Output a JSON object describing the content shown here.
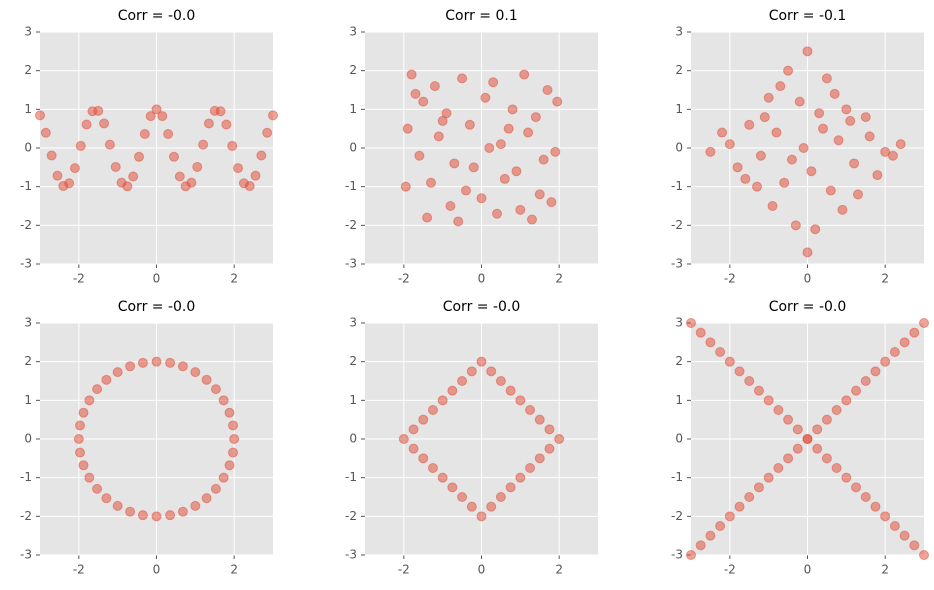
{
  "chart_data": [
    {
      "type": "scatter",
      "title": "Corr = -0.0",
      "color": "#E24A33",
      "grid": true,
      "xlim": [
        -3,
        3
      ],
      "ylim": [
        -3,
        3
      ],
      "xticks": [
        -2,
        0,
        2
      ],
      "yticks": [
        -3,
        -2,
        -1,
        0,
        1,
        2,
        3
      ],
      "x": [
        -3,
        -2.85,
        -2.7,
        -2.55,
        -2.4,
        -2.25,
        -2.1,
        -1.95,
        -1.8,
        -1.65,
        -1.5,
        -1.35,
        -1.2,
        -1.05,
        -0.9,
        -0.75,
        -0.6,
        -0.45,
        -0.3,
        -0.15,
        0,
        0.15,
        0.3,
        0.45,
        0.6,
        0.75,
        0.9,
        1.05,
        1.2,
        1.35,
        1.5,
        1.65,
        1.8,
        1.95,
        2.1,
        2.25,
        2.4,
        2.55,
        2.7,
        2.85,
        3
      ],
      "y": [
        0.844,
        0.394,
        -0.194,
        -0.716,
        -0.984,
        -0.911,
        -0.52,
        0.054,
        0.608,
        0.95,
        0.96,
        0.635,
        0.087,
        -0.49,
        -0.897,
        -0.99,
        -0.737,
        -0.227,
        0.362,
        0.825,
        1,
        0.825,
        0.362,
        -0.227,
        -0.737,
        -0.99,
        -0.897,
        -0.49,
        0.087,
        0.635,
        0.96,
        0.95,
        0.608,
        0.054,
        -0.52,
        -0.911,
        -0.984,
        -0.716,
        -0.194,
        0.394,
        0.844
      ]
    },
    {
      "type": "scatter",
      "title": "Corr = 0.1",
      "color": "#E24A33",
      "grid": true,
      "xlim": [
        -3,
        3
      ],
      "ylim": [
        -3,
        3
      ],
      "xticks": [
        -2,
        0,
        2
      ],
      "yticks": [
        -3,
        -2,
        -1,
        0,
        1,
        2,
        3
      ],
      "x": [
        -1.8,
        -1.2,
        -0.5,
        0.3,
        1.1,
        1.7,
        -1.5,
        -0.9,
        0.1,
        0.8,
        1.4,
        -1.9,
        -1.1,
        -0.3,
        0.5,
        1.2,
        1.9,
        -1.6,
        -0.7,
        0.2,
        0.9,
        1.6,
        -1.3,
        -0.4,
        0.6,
        1.5,
        -1.95,
        -0.8,
        0,
        1,
        1.8,
        -1.4,
        -0.6,
        0.4,
        1.3,
        -1.7,
        -1,
        -0.2,
        0.7,
        1.95
      ],
      "y": [
        1.9,
        1.6,
        1.8,
        1.7,
        1.9,
        1.5,
        1.2,
        0.9,
        1.3,
        1.0,
        0.8,
        0.5,
        0.3,
        0.6,
        0.1,
        0.4,
        -0.1,
        -0.2,
        -0.4,
        0.0,
        -0.6,
        -0.3,
        -0.9,
        -1.1,
        -0.8,
        -1.2,
        -1.0,
        -1.5,
        -1.3,
        -1.6,
        -1.4,
        -1.8,
        -1.9,
        -1.7,
        -1.85,
        1.4,
        0.7,
        -0.5,
        0.5,
        1.2
      ]
    },
    {
      "type": "scatter",
      "title": "Corr = -0.1",
      "color": "#E24A33",
      "grid": true,
      "xlim": [
        -3,
        3
      ],
      "ylim": [
        -3,
        3
      ],
      "xticks": [
        -2,
        0,
        2
      ],
      "yticks": [
        -3,
        -2,
        -1,
        0,
        1,
        2,
        3
      ],
      "x": [
        0,
        0.5,
        -0.5,
        -0.2,
        0.3,
        -1.0,
        1.0,
        -1.5,
        1.5,
        -0.8,
        0.8,
        -2.0,
        2.0,
        -1.2,
        1.2,
        -0.4,
        0.4,
        -2.5,
        2.4,
        -1.8,
        1.8,
        -0.6,
        0.6,
        0,
        -1.3,
        1.3,
        -0.9,
        0.9,
        -0.3,
        0.2,
        -1.6,
        1.6,
        -0.7,
        0.7,
        0.1,
        -0.1,
        -2.2,
        2.2,
        -1.1,
        1.1
      ],
      "y": [
        2.5,
        1.8,
        2.0,
        1.2,
        0.9,
        1.3,
        1.0,
        0.6,
        0.8,
        0.4,
        0.2,
        0.1,
        -0.1,
        -0.2,
        -0.4,
        -0.3,
        0.5,
        -0.1,
        0.1,
        -0.5,
        -0.7,
        -0.9,
        -1.1,
        -2.7,
        -1.0,
        -1.2,
        -1.5,
        -1.6,
        -2.0,
        -2.1,
        -0.8,
        0.3,
        1.6,
        1.4,
        -0.6,
        0.0,
        0.4,
        -0.2,
        0.8,
        0.7
      ]
    },
    {
      "type": "scatter",
      "title": "Corr = -0.0",
      "color": "#E24A33",
      "grid": true,
      "xlim": [
        -3,
        3
      ],
      "ylim": [
        -3,
        3
      ],
      "xticks": [
        -2,
        0,
        2
      ],
      "yticks": [
        -3,
        -2,
        -1,
        0,
        1,
        2,
        3
      ],
      "x": [
        2,
        1.97,
        1.88,
        1.73,
        1.53,
        1.29,
        1,
        0.68,
        0.35,
        0,
        -0.35,
        -0.68,
        -1,
        -1.29,
        -1.53,
        -1.73,
        -1.88,
        -1.97,
        -2,
        -1.97,
        -1.88,
        -1.73,
        -1.53,
        -1.29,
        -1,
        -0.68,
        -0.35,
        0,
        0.35,
        0.68,
        1,
        1.29,
        1.53,
        1.73,
        1.88,
        1.97
      ],
      "y": [
        0,
        0.35,
        0.68,
        1,
        1.29,
        1.53,
        1.73,
        1.88,
        1.97,
        2,
        1.97,
        1.88,
        1.73,
        1.53,
        1.29,
        1,
        0.68,
        0.35,
        0,
        -0.35,
        -0.68,
        -1,
        -1.29,
        -1.53,
        -1.73,
        -1.88,
        -1.97,
        -2,
        -1.97,
        -1.88,
        -1.73,
        -1.53,
        -1.29,
        -1,
        -0.68,
        -0.35
      ]
    },
    {
      "type": "scatter",
      "title": "Corr = -0.0",
      "color": "#E24A33",
      "grid": true,
      "xlim": [
        -3,
        3
      ],
      "ylim": [
        -3,
        3
      ],
      "xticks": [
        -2,
        0,
        2
      ],
      "yticks": [
        -3,
        -2,
        -1,
        0,
        1,
        2,
        3
      ],
      "x": [
        -2,
        -1.75,
        -1.5,
        -1.25,
        -1,
        -0.75,
        -0.5,
        -0.25,
        0,
        0.25,
        0.5,
        0.75,
        1,
        1.25,
        1.5,
        1.75,
        2,
        -1.75,
        -1.5,
        -1.25,
        -1,
        -0.75,
        -0.5,
        -0.25,
        0,
        0.25,
        0.5,
        0.75,
        1,
        1.25,
        1.5,
        1.75
      ],
      "y": [
        0,
        0.25,
        0.5,
        0.75,
        1,
        1.25,
        1.5,
        1.75,
        2,
        1.75,
        1.5,
        1.25,
        1,
        0.75,
        0.5,
        0.25,
        0,
        -0.25,
        -0.5,
        -0.75,
        -1,
        -1.25,
        -1.5,
        -1.75,
        -2,
        -1.75,
        -1.5,
        -1.25,
        -1,
        -0.75,
        -0.5,
        -0.25
      ]
    },
    {
      "type": "scatter",
      "title": "Corr = -0.0",
      "color": "#E24A33",
      "grid": true,
      "xlim": [
        -3,
        3
      ],
      "ylim": [
        -3,
        3
      ],
      "xticks": [
        -2,
        0,
        2
      ],
      "yticks": [
        -3,
        -2,
        -1,
        0,
        1,
        2,
        3
      ],
      "x": [
        -3,
        -2.75,
        -2.5,
        -2.25,
        -2,
        -1.75,
        -1.5,
        -1.25,
        -1,
        -0.75,
        -0.5,
        -0.25,
        0,
        0.25,
        0.5,
        0.75,
        1,
        1.25,
        1.5,
        1.75,
        2,
        2.25,
        2.5,
        2.75,
        3,
        -3,
        -2.75,
        -2.5,
        -2.25,
        -2,
        -1.75,
        -1.5,
        -1.25,
        -1,
        -0.75,
        -0.5,
        -0.25,
        0,
        0.25,
        0.5,
        0.75,
        1,
        1.25,
        1.5,
        1.75,
        2,
        2.25,
        2.5,
        2.75,
        3
      ],
      "y": [
        -3,
        -2.75,
        -2.5,
        -2.25,
        -2,
        -1.75,
        -1.5,
        -1.25,
        -1,
        -0.75,
        -0.5,
        -0.25,
        0,
        0.25,
        0.5,
        0.75,
        1,
        1.25,
        1.5,
        1.75,
        2,
        2.25,
        2.5,
        2.75,
        3,
        3,
        2.75,
        2.5,
        2.25,
        2,
        1.75,
        1.5,
        1.25,
        1,
        0.75,
        0.5,
        0.25,
        0,
        -0.25,
        -0.5,
        -0.75,
        -1,
        -1.25,
        -1.5,
        -1.75,
        -2,
        -2.25,
        -2.5,
        -2.75,
        -3
      ]
    }
  ]
}
